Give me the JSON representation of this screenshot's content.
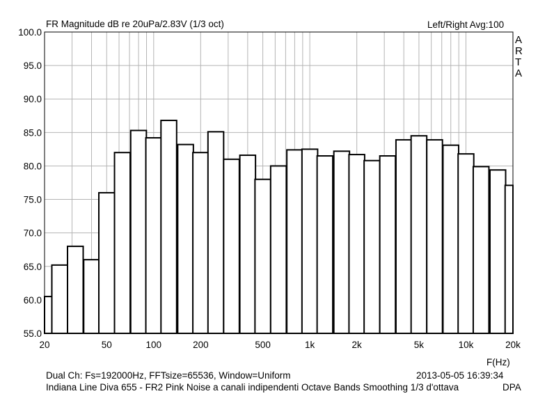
{
  "header": {
    "title": "FR Magnitude dB re 20uPa/2.83V (1/3 oct)",
    "right": "Left/Right  Avg:100"
  },
  "side_letters": [
    "A",
    "R",
    "T",
    "A"
  ],
  "footer": {
    "line1": "Dual Ch: Fs=192000Hz, FFTsize=65536, Window=Uniform",
    "timestamp": "2013-05-05  16:39:34",
    "line2": "Indiana Line Diva 655 - FR2 Pink Noise a canali indipendenti Octave Bands Smoothing 1/3 d'ottava",
    "tag": "DPA"
  },
  "chart_data": {
    "type": "bar",
    "title": "FR Magnitude dB re 20uPa/2.83V (1/3 oct)",
    "xlabel": "F(Hz)",
    "ylabel": "",
    "x_scale": "log",
    "xlim": [
      20,
      20000
    ],
    "ylim": [
      55,
      100
    ],
    "grid": true,
    "y_ticks": [
      "100.0",
      "95.0",
      "90.0",
      "85.0",
      "80.0",
      "75.0",
      "70.0",
      "65.0",
      "60.0",
      "55.0"
    ],
    "x_ticks": [
      {
        "value": 20,
        "label": "20"
      },
      {
        "value": 50,
        "label": "50"
      },
      {
        "value": 100,
        "label": "100"
      },
      {
        "value": 200,
        "label": "200"
      },
      {
        "value": 500,
        "label": "500"
      },
      {
        "value": 1000,
        "label": "1k"
      },
      {
        "value": 2000,
        "label": "2k"
      },
      {
        "value": 5000,
        "label": "5k"
      },
      {
        "value": 10000,
        "label": "10k"
      },
      {
        "value": 20000,
        "label": "20k"
      }
    ],
    "categories": [
      20,
      25,
      31.5,
      40,
      50,
      63,
      80,
      100,
      125,
      160,
      200,
      250,
      315,
      400,
      500,
      630,
      800,
      1000,
      1250,
      1600,
      2000,
      2500,
      3150,
      4000,
      5000,
      6300,
      8000,
      10000,
      12500,
      16000,
      20000
    ],
    "values": [
      60.5,
      65.2,
      68.0,
      66.0,
      76.0,
      82.0,
      85.3,
      84.2,
      86.8,
      83.2,
      82.0,
      85.1,
      81.0,
      81.6,
      78.0,
      80.0,
      82.4,
      82.5,
      81.5,
      82.2,
      81.7,
      80.8,
      81.5,
      83.9,
      84.5,
      83.9,
      83.1,
      81.8,
      79.9,
      79.4,
      77.1
    ]
  }
}
